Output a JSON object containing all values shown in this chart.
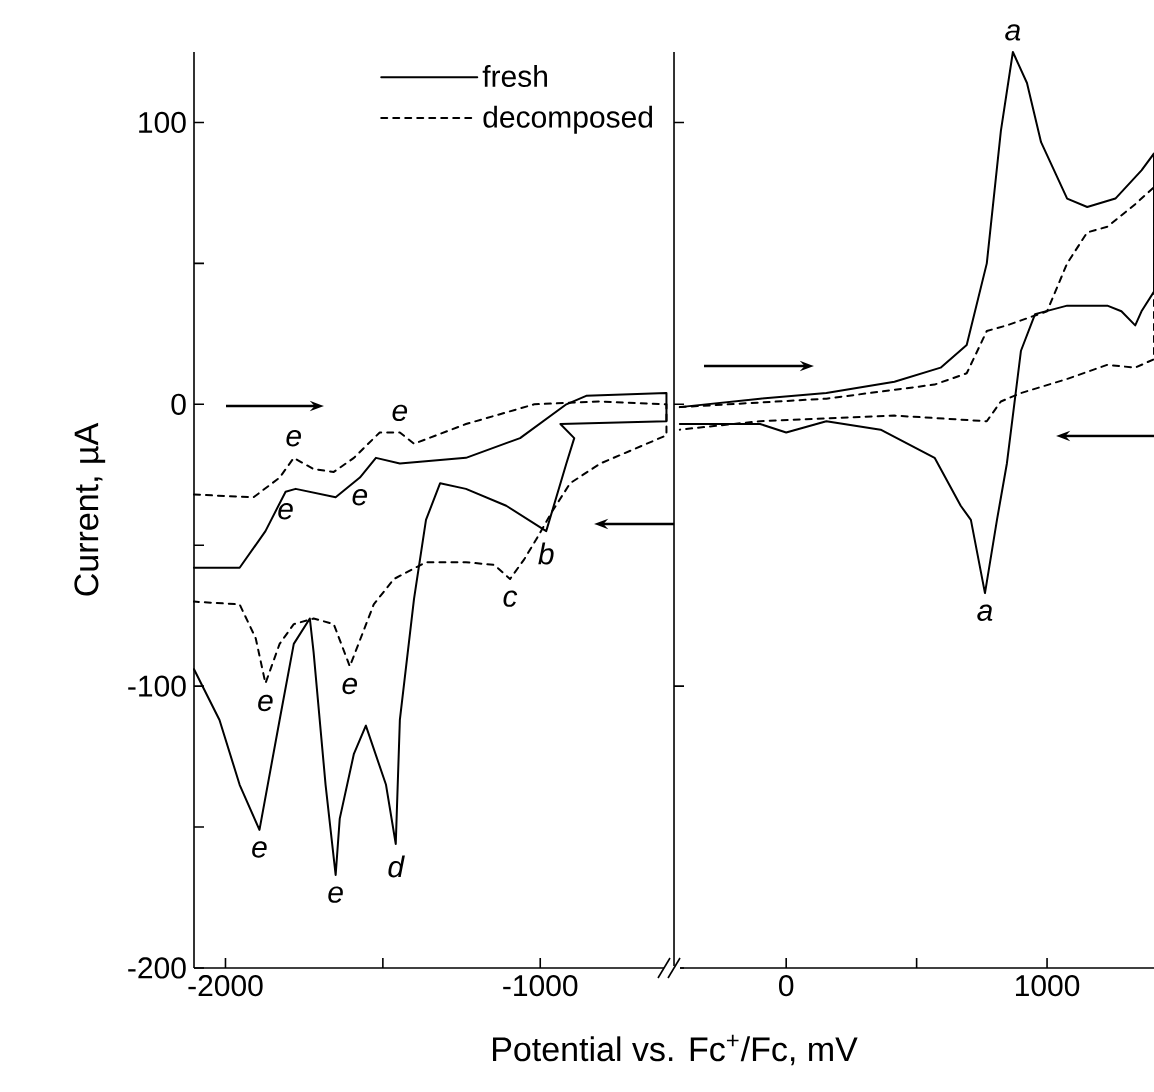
{
  "chart_data": [
    {
      "type": "line",
      "xlabel": "Potential vs. Fc$^{+}$/Fc, mV",
      "ylabel": "Current, µA",
      "xlim": [
        -2100,
        -575
      ],
      "xticks": [
        -2000,
        {
          "value": -1500,
          "label": null
        },
        -1000
      ],
      "ylim": [
        -200,
        125
      ],
      "yticks": [
        -200,
        -100,
        0,
        100,
        {
          "value": -150,
          "label": null
        },
        {
          "value": -50,
          "label": null
        },
        {
          "value": 50,
          "label": null
        }
      ],
      "legend": "top right",
      "series": [
        {
          "name": "fresh",
          "color": "#000000",
          "line_style": "solid",
          "x": [
            -2100,
            -1955,
            -1873,
            -1809,
            -1777,
            -1650,
            -1573,
            -1522,
            -1446,
            -1236,
            -1064,
            -917,
            -854,
            -599,
            -599,
            -936,
            -892,
            -917,
            -981,
            -1108,
            -1236,
            -1318,
            -1363,
            -1401,
            -1446,
            -1459,
            -1490,
            -1554,
            -1592,
            -1637,
            -1650,
            -1682,
            -1720,
            -1732,
            -1783,
            -1828,
            -1892,
            -1955,
            -2019,
            -2100
          ],
          "values": [
            -58,
            -58,
            -45,
            -31,
            -30,
            -33,
            -26,
            -19,
            -21,
            -19,
            -12,
            0,
            3,
            4,
            -6,
            -7,
            -12,
            -21,
            -45,
            -36,
            -30,
            -28,
            -41,
            -69,
            -112,
            -156,
            -135,
            -114,
            -124,
            -147,
            -167,
            -135,
            -88,
            -76,
            -85,
            -112,
            -151,
            -135,
            -112,
            -94
          ]
        },
        {
          "name": "decomposed",
          "color": "#000000",
          "line_style": "dashed",
          "x": [
            -2100,
            -1911,
            -1828,
            -1783,
            -1720,
            -1656,
            -1592,
            -1510,
            -1446,
            -1401,
            -1236,
            -1019,
            -809,
            -599,
            -599,
            -809,
            -905,
            -962,
            -1013,
            -1051,
            -1096,
            -1146,
            -1236,
            -1363,
            -1465,
            -1529,
            -1605,
            -1656,
            -1720,
            -1783,
            -1828,
            -1873,
            -1904,
            -1955,
            -2100
          ],
          "values": [
            -32,
            -33,
            -26,
            -19,
            -23,
            -24,
            -19,
            -10,
            -10,
            -14,
            -7,
            0,
            1,
            0,
            -11,
            -21,
            -28,
            -38,
            -48,
            -55,
            -62,
            -57,
            -56,
            -56,
            -62,
            -71,
            -93,
            -78,
            -76,
            -78,
            -85,
            -99,
            -83,
            -71,
            -70
          ]
        }
      ],
      "annotations": [
        {
          "text": "e",
          "x": -1783,
          "y": -19
        },
        {
          "text": "e",
          "x": -1446,
          "y": -10
        },
        {
          "text": "e",
          "x": -1809,
          "y": -31
        },
        {
          "text": "e",
          "x": -1573,
          "y": -26
        },
        {
          "text": "b",
          "x": -981,
          "y": -45
        },
        {
          "text": "c",
          "x": -1096,
          "y": -62
        },
        {
          "text": "e",
          "x": -1873,
          "y": -99
        },
        {
          "text": "e",
          "x": -1605,
          "y": -93
        },
        {
          "text": "e",
          "x": -1892,
          "y": -151
        },
        {
          "text": "e",
          "x": -1650,
          "y": -167
        },
        {
          "text": "d",
          "x": -1459,
          "y": -156
        }
      ]
    },
    {
      "type": "line",
      "xlim": [
        -430,
        1410
      ],
      "xticks": [
        0,
        {
          "value": 500,
          "label": null
        },
        1000
      ],
      "ylim": [
        -200,
        125
      ],
      "yticks": [
        -200,
        -100,
        0,
        100
      ],
      "tick_labels": "x",
      "series": [
        {
          "color": "#000000",
          "line_style": "solid",
          "x": [
            -408,
            -100,
            154,
            415,
            592,
            692,
            769,
            823,
            869,
            923,
            977,
            1077,
            1154,
            1262,
            1362,
            1410,
            1410,
            1362,
            1338,
            1285,
            1231,
            1077,
            954,
            900,
            846,
            808,
            762,
            708,
            669,
            569,
            362,
            154,
            0,
            -100,
            -408
          ],
          "values": [
            -1,
            2,
            4,
            8,
            13,
            21,
            50,
            97,
            125,
            114,
            93,
            73,
            70,
            73,
            83,
            89,
            40,
            33,
            28,
            33,
            35,
            35,
            32,
            19,
            -21,
            -41,
            -67,
            -41,
            -36,
            -19,
            -9,
            -6,
            -10,
            -7,
            -7
          ]
        },
        {
          "color": "#000000",
          "line_style": "dashed",
          "x": [
            -408,
            154,
            569,
            692,
            769,
            846,
            1000,
            1077,
            1154,
            1231,
            1338,
            1410,
            1410,
            1338,
            1231,
            1077,
            900,
            823,
            769,
            415,
            -100,
            -408
          ],
          "values": [
            -1,
            2,
            7,
            11,
            26,
            28,
            33,
            50,
            61,
            63,
            71,
            77,
            16,
            13,
            14,
            9,
            4,
            1,
            -6,
            -4,
            -6,
            -9
          ]
        }
      ],
      "annotations": [
        {
          "text": "a",
          "x": 869,
          "y": 125
        },
        {
          "text": "a",
          "x": 762,
          "y": -67
        }
      ]
    }
  ]
}
